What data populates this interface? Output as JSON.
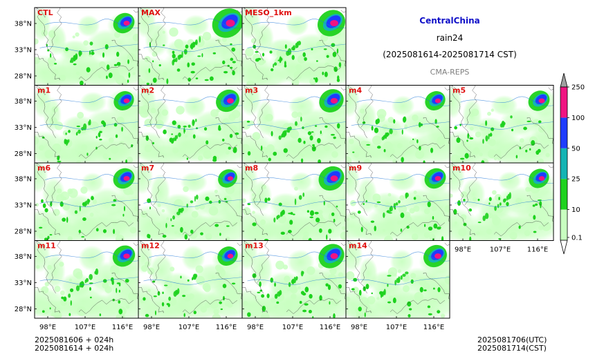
{
  "title": {
    "region": "CentralChina",
    "variable": "rain24",
    "period": "(2025081614-2025081714 CST)",
    "model": "CMA-REPS"
  },
  "colors": {
    "region_title": "#1010c8",
    "model_title": "#808080",
    "panel_label": "#e01010",
    "land": "#ffffff",
    "border": "#000000",
    "river": "#1f77d8"
  },
  "panels": [
    {
      "label": "CTL",
      "row": 0,
      "col": 0,
      "intensity": 1.0
    },
    {
      "label": "MAX",
      "row": 0,
      "col": 1,
      "intensity": 1.45
    },
    {
      "label": "MESO_1km",
      "row": 0,
      "col": 2,
      "intensity": 1.3
    },
    {
      "label": "m1",
      "row": 1,
      "col": 0,
      "intensity": 0.95
    },
    {
      "label": "m2",
      "row": 1,
      "col": 1,
      "intensity": 1.1
    },
    {
      "label": "m3",
      "row": 1,
      "col": 2,
      "intensity": 1.15
    },
    {
      "label": "m4",
      "row": 1,
      "col": 3,
      "intensity": 0.95
    },
    {
      "label": "m5",
      "row": 1,
      "col": 4,
      "intensity": 1.0
    },
    {
      "label": "m6",
      "row": 2,
      "col": 0,
      "intensity": 1.0
    },
    {
      "label": "m7",
      "row": 2,
      "col": 1,
      "intensity": 0.9
    },
    {
      "label": "m8",
      "row": 2,
      "col": 2,
      "intensity": 1.2
    },
    {
      "label": "m9",
      "row": 2,
      "col": 3,
      "intensity": 1.0
    },
    {
      "label": "m10",
      "row": 2,
      "col": 4,
      "intensity": 0.95
    },
    {
      "label": "m11",
      "row": 3,
      "col": 0,
      "intensity": 1.05
    },
    {
      "label": "m12",
      "row": 3,
      "col": 1,
      "intensity": 0.95
    },
    {
      "label": "m13",
      "row": 3,
      "col": 2,
      "intensity": 1.2
    },
    {
      "label": "m14",
      "row": 3,
      "col": 3,
      "intensity": 1.1
    }
  ],
  "lat_ticks": [
    "38°N",
    "33°N",
    "28°N"
  ],
  "lon_ticks": [
    "98°E",
    "107°E",
    "116°E"
  ],
  "colorbar": {
    "levels": [
      "0.1",
      "10",
      "25",
      "50",
      "100",
      "250"
    ],
    "colors": [
      "#c8ffc0",
      "#1ed21e",
      "#14b4b4",
      "#1e3cff",
      "#f01482"
    ],
    "extend_below_color": "#ffffff",
    "extend_above_color": "#a0a0a0"
  },
  "footer": {
    "init_utc": "2025081606  +  024h",
    "init_cst": "2025081614  +  024h",
    "valid_utc": "2025081706(UTC)",
    "valid_cst": "2025081714(CST)"
  }
}
